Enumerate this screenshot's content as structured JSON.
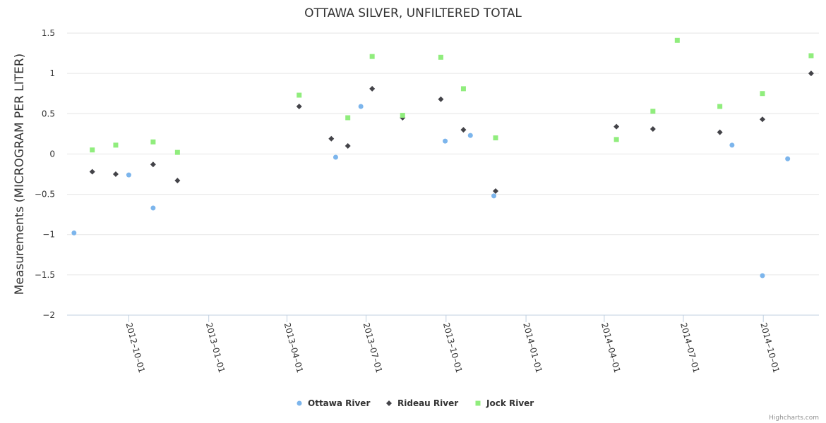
{
  "chart_data": {
    "type": "scatter",
    "title": "OTTAWA SILVER, UNFILTERED TOTAL",
    "xlabel": "",
    "ylabel": "Measurements (MICROGRAM PER LITER)",
    "ylim": [
      -2,
      1.5
    ],
    "yticks": [
      -2,
      -1.5,
      -1,
      -0.5,
      0,
      0.5,
      1,
      1.5
    ],
    "ytick_labels": [
      "−2",
      "−1.5",
      "−1",
      "−0.5",
      "0",
      "0.5",
      "1",
      "1.5"
    ],
    "xlim": [
      "2012-07-22",
      "2014-12-04"
    ],
    "xticks": [
      "2012-10-01",
      "2013-01-01",
      "2013-04-01",
      "2013-07-01",
      "2013-10-01",
      "2014-01-01",
      "2014-04-01",
      "2014-07-01",
      "2014-10-01"
    ],
    "grid": "horizontal",
    "legend_position": "bottom-center",
    "series": [
      {
        "name": "Ottawa River",
        "color": "#7cb5ec",
        "marker": "circle",
        "points": [
          [
            "2012-07-30",
            -0.98
          ],
          [
            "2012-10-01",
            -0.26
          ],
          [
            "2012-10-29",
            -0.67
          ],
          [
            "2013-05-27",
            -0.04
          ],
          [
            "2013-06-25",
            0.59
          ],
          [
            "2013-09-30",
            0.16
          ],
          [
            "2013-10-29",
            0.23
          ],
          [
            "2013-11-25",
            -0.52
          ],
          [
            "2014-08-26",
            0.11
          ],
          [
            "2014-09-30",
            -1.51
          ],
          [
            "2014-10-29",
            -0.06
          ]
        ]
      },
      {
        "name": "Rideau River",
        "color": "#434348",
        "marker": "diamond",
        "points": [
          [
            "2012-08-20",
            -0.22
          ],
          [
            "2012-09-16",
            -0.25
          ],
          [
            "2012-10-29",
            -0.13
          ],
          [
            "2012-11-26",
            -0.33
          ],
          [
            "2013-04-15",
            0.59
          ],
          [
            "2013-05-22",
            0.19
          ],
          [
            "2013-06-10",
            0.1
          ],
          [
            "2013-07-08",
            0.81
          ],
          [
            "2013-08-12",
            0.45
          ],
          [
            "2013-09-25",
            0.68
          ],
          [
            "2013-10-21",
            0.3
          ],
          [
            "2013-11-27",
            -0.46
          ],
          [
            "2014-04-15",
            0.34
          ],
          [
            "2014-05-27",
            0.31
          ],
          [
            "2014-08-12",
            0.27
          ],
          [
            "2014-09-30",
            0.43
          ],
          [
            "2014-11-25",
            1.0
          ]
        ]
      },
      {
        "name": "Jock River",
        "color": "#90ed7d",
        "marker": "square",
        "points": [
          [
            "2012-08-20",
            0.05
          ],
          [
            "2012-09-16",
            0.11
          ],
          [
            "2012-10-29",
            0.15
          ],
          [
            "2012-11-26",
            0.02
          ],
          [
            "2013-04-15",
            0.73
          ],
          [
            "2013-06-10",
            0.45
          ],
          [
            "2013-07-08",
            1.21
          ],
          [
            "2013-08-12",
            0.48
          ],
          [
            "2013-09-25",
            1.2
          ],
          [
            "2013-10-21",
            0.81
          ],
          [
            "2013-11-27",
            0.2
          ],
          [
            "2014-04-15",
            0.18
          ],
          [
            "2014-05-27",
            0.53
          ],
          [
            "2014-06-24",
            1.41
          ],
          [
            "2014-08-12",
            0.59
          ],
          [
            "2014-09-30",
            0.75
          ],
          [
            "2014-11-25",
            1.22
          ]
        ]
      }
    ],
    "credits": "Highcharts.com"
  }
}
